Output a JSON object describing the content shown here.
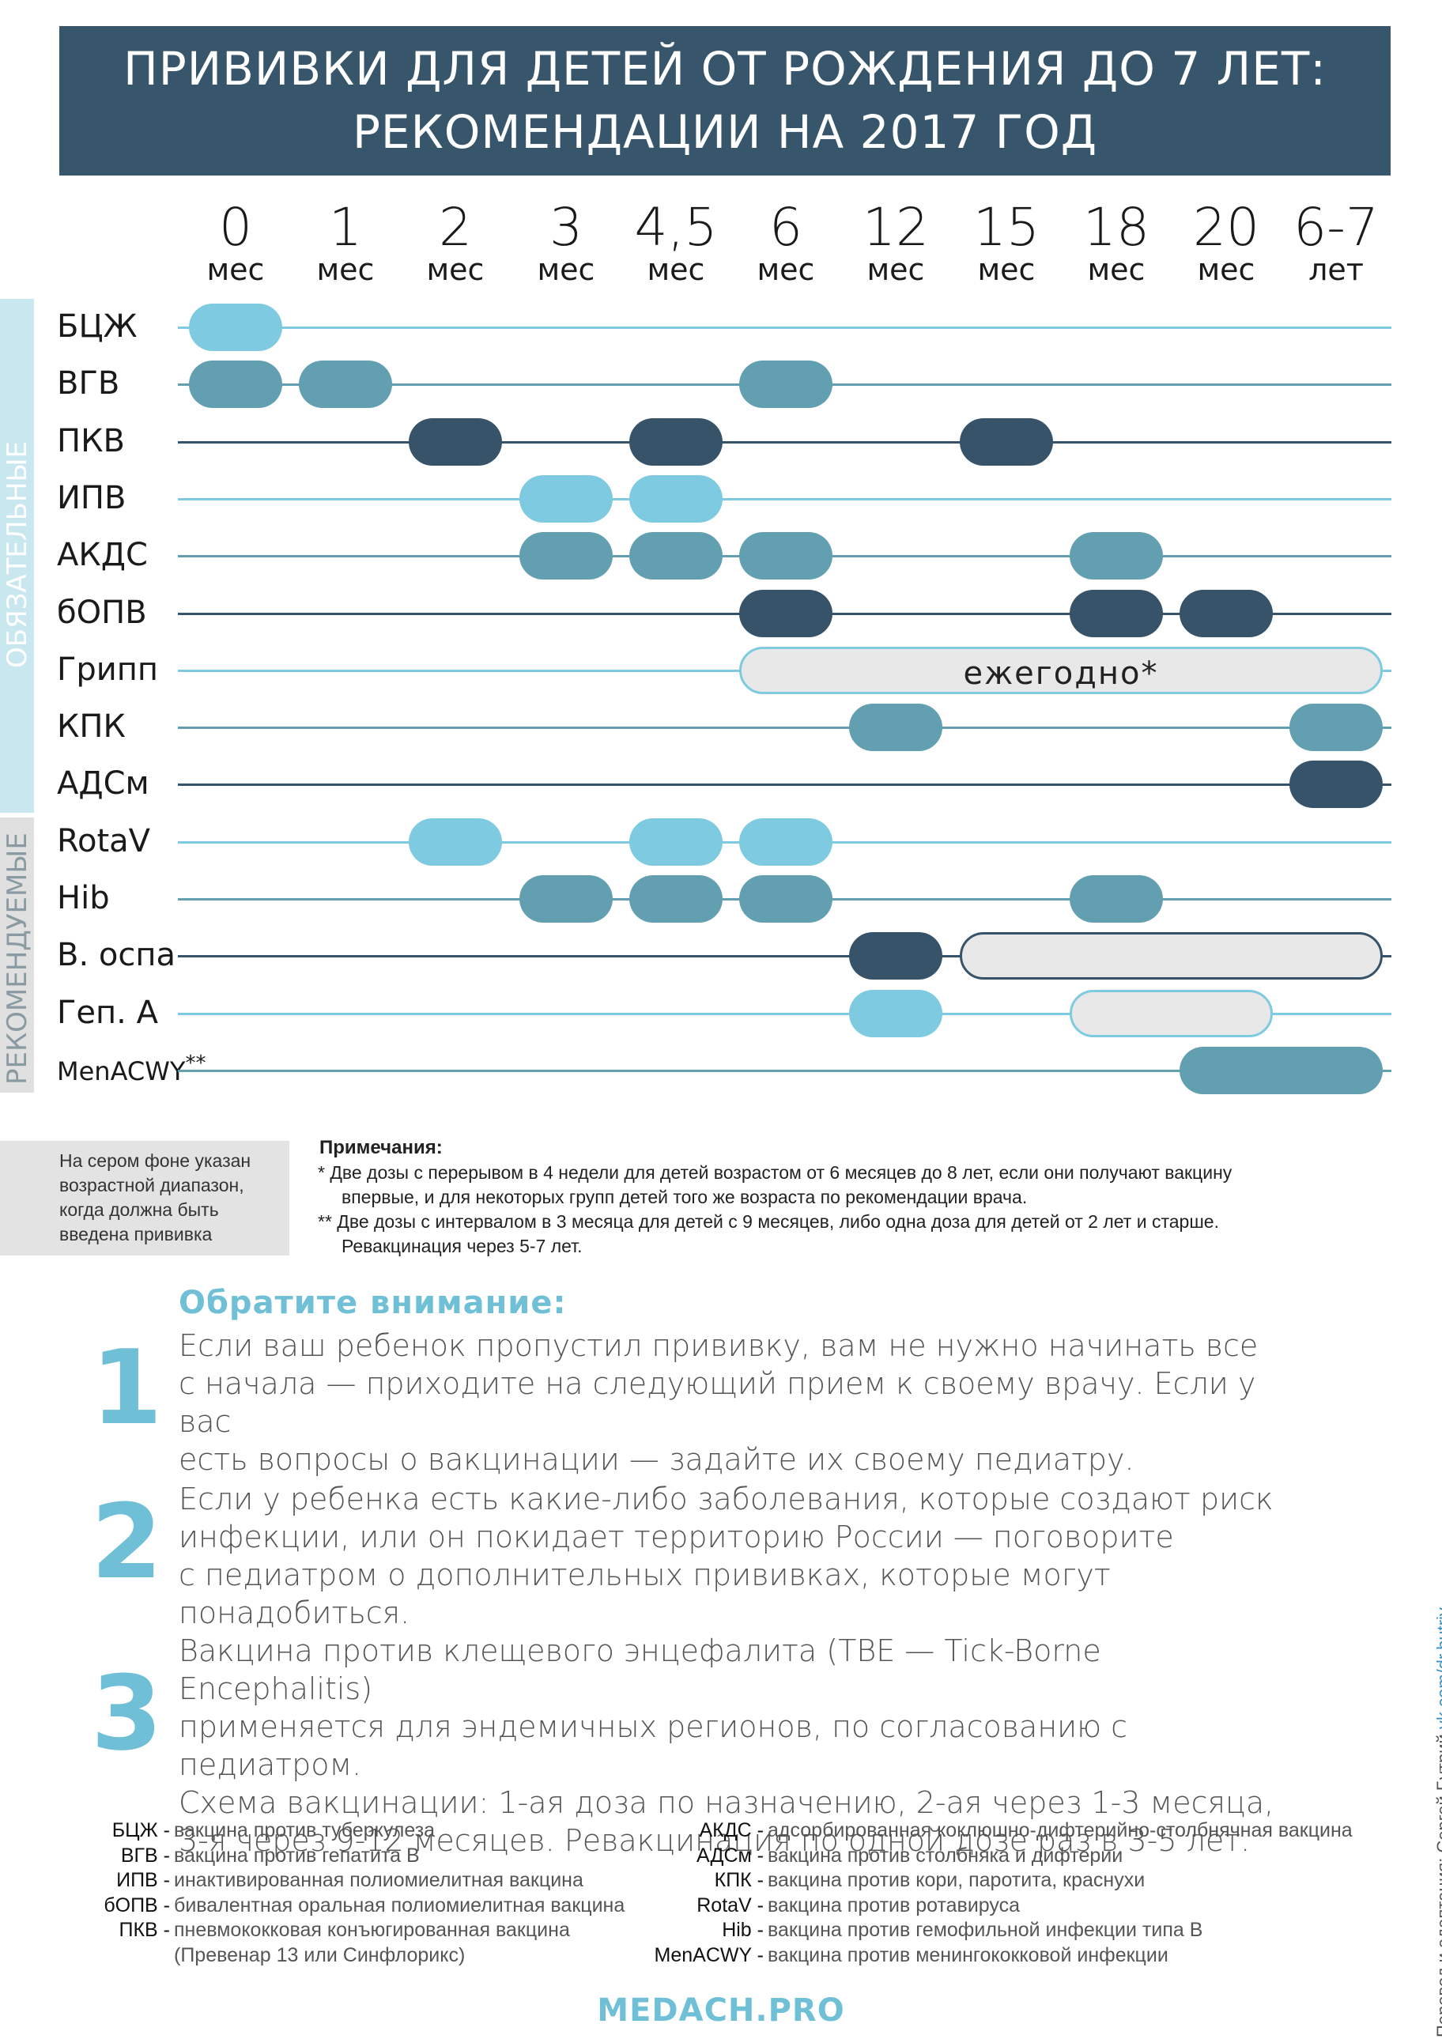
{
  "header": {
    "line1": "ПРИВИВКИ ДЛЯ ДЕТЕЙ ОТ РОЖДЕНИЯ ДО 7 ЛЕТ:",
    "line2": "РЕКОМЕНДАЦИИ НА 2017 ГОД"
  },
  "columns": [
    {
      "n": "0",
      "u": "мес"
    },
    {
      "n": "1",
      "u": "мес"
    },
    {
      "n": "2",
      "u": "мес"
    },
    {
      "n": "3",
      "u": "мес"
    },
    {
      "n": "4,5",
      "u": "мес"
    },
    {
      "n": "6",
      "u": "мес"
    },
    {
      "n": "12",
      "u": "мес"
    },
    {
      "n": "15",
      "u": "мес"
    },
    {
      "n": "18",
      "u": "мес"
    },
    {
      "n": "20",
      "u": "мес"
    },
    {
      "n": "6-7",
      "u": "лет"
    }
  ],
  "groups": {
    "mandatory": "ОБЯЗАТЕЛЬНЫЕ",
    "recommended": "РЕКОМЕНДУЕМЫЕ"
  },
  "colors": {
    "light": "#7ecae0",
    "mid": "#62a0b1",
    "dark": "#36536a",
    "range_fill": "#e8e8e8",
    "header": "#38566b"
  },
  "rows": [
    {
      "name": "БЦЖ",
      "line": "light",
      "doses": [
        {
          "from": 0,
          "to": 0,
          "color": "light"
        }
      ]
    },
    {
      "name": "ВГВ",
      "line": "mid",
      "doses": [
        {
          "from": 0,
          "to": 0,
          "color": "mid"
        },
        {
          "from": 1,
          "to": 1,
          "color": "mid"
        },
        {
          "from": 5,
          "to": 5,
          "color": "mid"
        }
      ]
    },
    {
      "name": "ПКВ",
      "line": "dark",
      "doses": [
        {
          "from": 2,
          "to": 2,
          "color": "dark"
        },
        {
          "from": 4,
          "to": 4,
          "color": "dark"
        },
        {
          "from": 7,
          "to": 7,
          "color": "dark"
        }
      ]
    },
    {
      "name": "ИПВ",
      "line": "light",
      "doses": [
        {
          "from": 3,
          "to": 3,
          "color": "light"
        },
        {
          "from": 4,
          "to": 4,
          "color": "light"
        }
      ]
    },
    {
      "name": "АКДС",
      "line": "mid",
      "doses": [
        {
          "from": 3,
          "to": 3,
          "color": "mid"
        },
        {
          "from": 4,
          "to": 4,
          "color": "mid"
        },
        {
          "from": 5,
          "to": 5,
          "color": "mid"
        },
        {
          "from": 8,
          "to": 8,
          "color": "mid"
        }
      ]
    },
    {
      "name": "бОПВ",
      "line": "dark",
      "doses": [
        {
          "from": 5,
          "to": 5,
          "color": "dark"
        },
        {
          "from": 8,
          "to": 8,
          "color": "dark"
        },
        {
          "from": 9,
          "to": 9,
          "color": "dark"
        }
      ]
    },
    {
      "name": "Грипп",
      "line": "light",
      "doses": [
        {
          "from": 5,
          "to": 10,
          "color": "range-light",
          "text": "ежегодно*"
        }
      ]
    },
    {
      "name": "КПК",
      "line": "mid",
      "doses": [
        {
          "from": 6,
          "to": 6,
          "color": "mid"
        },
        {
          "from": 10,
          "to": 10,
          "color": "mid"
        }
      ]
    },
    {
      "name": "АДСм",
      "line": "dark",
      "doses": [
        {
          "from": 10,
          "to": 10,
          "color": "dark"
        }
      ]
    },
    {
      "name": "RotaV",
      "line": "light",
      "doses": [
        {
          "from": 2,
          "to": 2,
          "color": "light"
        },
        {
          "from": 4,
          "to": 4,
          "color": "light"
        },
        {
          "from": 5,
          "to": 5,
          "color": "light"
        }
      ]
    },
    {
      "name": "Hib",
      "line": "mid",
      "doses": [
        {
          "from": 3,
          "to": 3,
          "color": "mid"
        },
        {
          "from": 4,
          "to": 4,
          "color": "mid"
        },
        {
          "from": 5,
          "to": 5,
          "color": "mid"
        },
        {
          "from": 8,
          "to": 8,
          "color": "mid"
        }
      ]
    },
    {
      "name": "В. оспа",
      "line": "dark",
      "doses": [
        {
          "from": 6,
          "to": 6,
          "color": "dark"
        },
        {
          "from": 7,
          "to": 10,
          "color": "range-dark"
        }
      ]
    },
    {
      "name": "Геп. А",
      "line": "light",
      "doses": [
        {
          "from": 6,
          "to": 6,
          "color": "light"
        },
        {
          "from": 8,
          "to": 9,
          "color": "range-light"
        }
      ]
    },
    {
      "name": "MenACWY",
      "sup": "**",
      "line": "mid",
      "doses": [
        {
          "from": 9,
          "to": 10,
          "color": "mid"
        }
      ]
    }
  ],
  "legend_note": "На сером фоне указан возрастной диапазон, когда должна быть введена прививка",
  "notes": {
    "title": "Примечания:",
    "n1": "*  Две дозы с перерывом в 4 недели для детей возрастом от 6 месяцев до 8 лет, если они получают вакцину",
    "n1b": "впервые, и для некоторых групп детей того же возраста по рекомендации врача.",
    "n2": "** Две дозы с интервалом в 3 месяца для детей с 9 месяцев, либо одна доза для детей от 2 лет и старше.",
    "n2b": "Ревакцинация через 5-7 лет."
  },
  "attention": {
    "title": "Обратите внимание:",
    "items": [
      {
        "num": "1",
        "lines": [
          "Если ваш ребенок пропустил прививку, вам не нужно начинать все",
          "с начала — приходите на следующий прием к своему врачу. Если у вас",
          "есть вопросы о вакцинации — задайте их своему педиатру."
        ]
      },
      {
        "num": "2",
        "lines": [
          "Если у ребенка есть какие-либо заболевания, которые создают риск",
          "инфекции, или он покидает территорию России — поговорите",
          "с педиатром о дополнительных прививках, которые могут понадобиться."
        ]
      },
      {
        "num": "3",
        "lines": [
          "Вакцина против клещевого энцефалита (TBE — Tick-Borne Encephalitis)",
          "применяется для эндемичных регионов, по согласованию с педиатром.",
          "Схема вакцинации: 1-ая доза по назначению, 2-ая через 1-3 месяца,",
          "3-я через 9-12 месяцев. Ревакцинация по одной дозе раз в 3-5 лет."
        ]
      }
    ]
  },
  "abbreviations_left": [
    {
      "k": "БЦЖ -",
      "v": "вакцина против туберкулеза"
    },
    {
      "k": "ВГВ -",
      "v": "вакцина против гепатита В"
    },
    {
      "k": "ИПВ -",
      "v": "инактивированная полиомиелитная вакцина"
    },
    {
      "k": "бОПВ -",
      "v": "бивалентная оральная полиомиелитная вакцина"
    },
    {
      "k": "ПКВ -",
      "v": "пневмококковая конъюгированная вакцина"
    },
    {
      "k": "",
      "v": "(Превенар 13 или Синфлорикс)"
    }
  ],
  "abbreviations_right": [
    {
      "k": "АКДС -",
      "v": "адсорбированная коклюшно-дифтерийно-столбнячная вакцина"
    },
    {
      "k": "АДСм -",
      "v": "вакцина против столбняка и дифтерии"
    },
    {
      "k": "КПК -",
      "v": "вакцина против кори, паротита, краснухи"
    },
    {
      "k": "RotaV -",
      "v": "вакцина против ротавируса"
    },
    {
      "k": "Hib -",
      "v": "вакцина против гемофильной инфекции типа В"
    },
    {
      "k": "MenACWY -",
      "v": "вакцина против менингококковой инфекции"
    }
  ],
  "credit": {
    "prefix": "Перевод и адаптация: Сергей Бутрий",
    "link": "vk.com/dr.butriy"
  },
  "brand": "MEDACH.PRO"
}
